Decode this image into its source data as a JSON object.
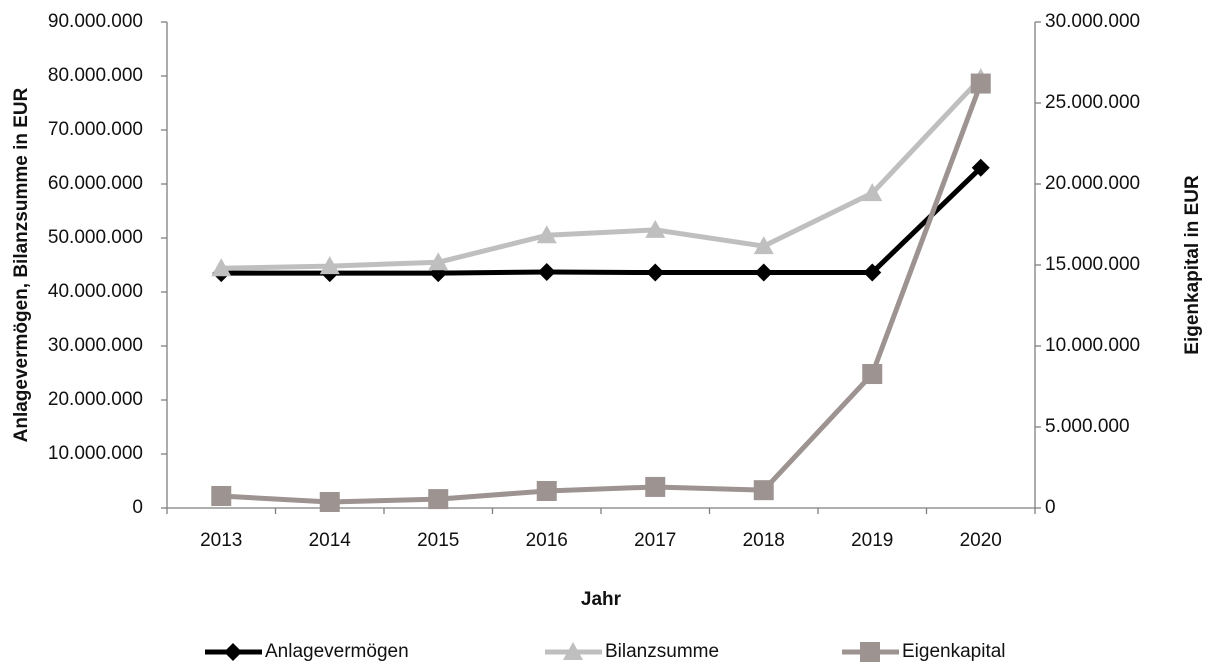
{
  "chart_data": {
    "type": "line",
    "x_label": "Jahr",
    "y_label": "Anlagevermögen, Bilanzsumme in EUR",
    "y2_label": "Eigenkapital in EUR",
    "categories": [
      "2013",
      "2014",
      "2015",
      "2016",
      "2017",
      "2018",
      "2019",
      "2020"
    ],
    "series": [
      {
        "name": "Anlagevermögen",
        "color": "#000000",
        "marker": "diamond",
        "axis": "y",
        "values": [
          43500000,
          43500000,
          43500000,
          43700000,
          43600000,
          43600000,
          43600000,
          63000000
        ]
      },
      {
        "name": "Bilanzsumme",
        "color": "#bfbfbf",
        "marker": "triangle",
        "axis": "y",
        "values": [
          44400000,
          44800000,
          45500000,
          50500000,
          51500000,
          48500000,
          58300000,
          79600000
        ]
      },
      {
        "name": "Eigenkapital",
        "color": "#9d9391",
        "marker": "square",
        "axis": "y2",
        "values": [
          740000,
          370000,
          550000,
          1050000,
          1300000,
          1100000,
          8270000,
          26200000
        ]
      }
    ],
    "ylim": [
      0,
      90000000
    ],
    "yticks": [
      0,
      {
        "value": 10000000,
        "label": "10.000.000"
      },
      {
        "value": 20000000,
        "label": "20.000.000"
      },
      {
        "value": 30000000,
        "label": "30.000.000"
      },
      {
        "value": 40000000,
        "label": "40.000.000"
      },
      {
        "value": 50000000,
        "label": "50.000.000"
      },
      {
        "value": 60000000,
        "label": "60.000.000"
      },
      {
        "value": 70000000,
        "label": "70.000.000"
      },
      {
        "value": 80000000,
        "label": "80.000.000"
      },
      {
        "value": 90000000,
        "label": "90.000.000"
      }
    ],
    "y2lim": [
      0,
      30000000
    ],
    "y2ticks": [
      0,
      {
        "value": 5000000,
        "label": "5.000.000"
      },
      {
        "value": 10000000,
        "label": "10.000.000"
      },
      {
        "value": 15000000,
        "label": "15.000.000"
      },
      {
        "value": 20000000,
        "label": "20.000.000"
      },
      {
        "value": 25000000,
        "label": "25.000.000"
      },
      {
        "value": 30000000,
        "label": "30.000.000"
      }
    ],
    "grid": false,
    "legend": "bottom"
  }
}
